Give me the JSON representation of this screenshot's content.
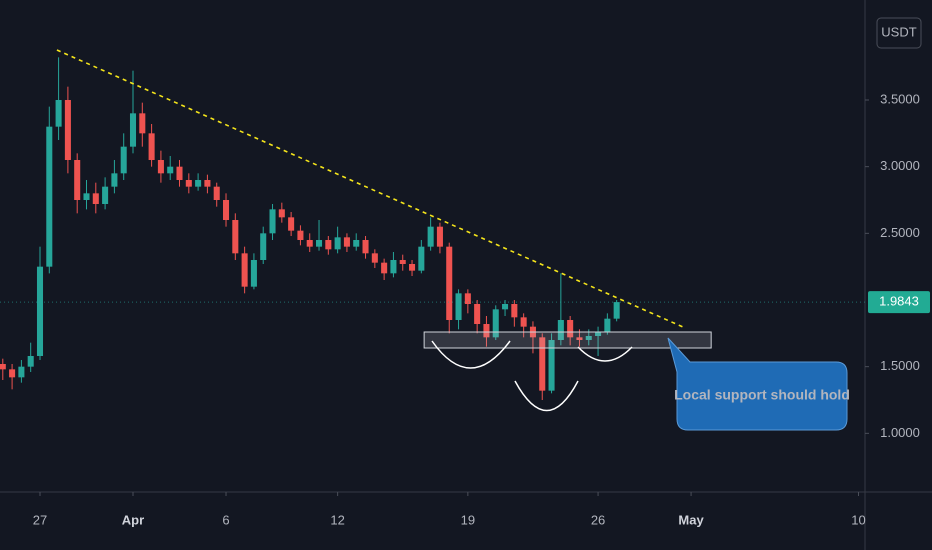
{
  "chart_data": {
    "type": "candlestick",
    "currency": "USDT",
    "up_color": "#26a69a",
    "down_color": "#ef5350",
    "grid": false,
    "xlim": [
      -2.15,
      44.35
    ],
    "xticks": [
      {
        "value": 0,
        "label": "27"
      },
      {
        "value": 5,
        "label": "Apr"
      },
      {
        "value": 10,
        "label": "6"
      },
      {
        "value": 16,
        "label": "12"
      },
      {
        "value": 23,
        "label": "19"
      },
      {
        "value": 30,
        "label": "26"
      },
      {
        "value": 35,
        "label": "May"
      },
      {
        "value": 44,
        "label": "10"
      }
    ],
    "ylim": [
      0.56,
      4.25
    ],
    "yticks": [
      {
        "value": 1,
        "label": "1.0000"
      },
      {
        "value": 1.5,
        "label": "1.5000"
      },
      {
        "value": 2.5,
        "label": "2.5000"
      },
      {
        "value": 3,
        "label": "3.0000"
      },
      {
        "value": 3.5,
        "label": "3.5000"
      }
    ],
    "x": [
      -2,
      -1.5,
      -1,
      -0.5,
      0,
      0.5,
      1,
      1.5,
      2,
      2.5,
      3,
      3.5,
      4,
      4.5,
      5,
      5.5,
      6,
      6.5,
      7,
      7.5,
      8,
      8.5,
      9,
      9.5,
      10,
      10.5,
      11,
      11.5,
      12,
      12.5,
      13,
      13.5,
      14,
      14.5,
      15,
      15.5,
      16,
      16.5,
      17,
      17.5,
      18,
      18.5,
      19,
      19.5,
      20,
      20.5,
      21,
      21.5,
      22,
      22.5,
      23,
      23.5,
      24,
      24.5,
      25,
      25.5,
      26,
      26.5,
      27,
      27.5,
      28,
      28.5,
      29,
      29.5,
      30,
      30.5,
      31
    ],
    "open": [
      1.52,
      1.48,
      1.42,
      1.5,
      1.58,
      2.25,
      3.3,
      3.5,
      3.05,
      2.75,
      2.8,
      2.72,
      2.85,
      2.95,
      3.15,
      3.4,
      3.25,
      3.05,
      2.95,
      3.0,
      2.9,
      2.85,
      2.9,
      2.85,
      2.75,
      2.6,
      2.35,
      2.1,
      2.3,
      2.5,
      2.68,
      2.62,
      2.52,
      2.45,
      2.4,
      2.45,
      2.38,
      2.47,
      2.4,
      2.45,
      2.35,
      2.28,
      2.2,
      2.3,
      2.27,
      2.22,
      2.4,
      2.55,
      2.4,
      1.85,
      2.05,
      1.97,
      1.82,
      1.72,
      1.93,
      1.97,
      1.87,
      1.8,
      1.72,
      1.32,
      1.7,
      1.85,
      1.72,
      1.7,
      1.73,
      1.76,
      1.86
    ],
    "high": [
      1.56,
      1.52,
      1.55,
      1.68,
      2.4,
      3.45,
      3.82,
      3.6,
      3.1,
      2.9,
      2.88,
      2.92,
      3.05,
      3.25,
      3.72,
      3.48,
      3.32,
      3.12,
      3.08,
      3.05,
      2.95,
      2.95,
      2.94,
      2.88,
      2.8,
      2.65,
      2.4,
      2.35,
      2.55,
      2.72,
      2.73,
      2.66,
      2.56,
      2.5,
      2.6,
      2.48,
      2.55,
      2.5,
      2.5,
      2.48,
      2.38,
      2.31,
      2.36,
      2.34,
      2.3,
      2.45,
      2.62,
      2.58,
      2.43,
      2.08,
      2.08,
      2.0,
      1.88,
      1.96,
      2.0,
      2.0,
      1.9,
      1.84,
      1.75,
      1.75,
      2.2,
      1.88,
      1.78,
      1.78,
      1.8,
      1.9,
      2.0
    ],
    "low": [
      1.4,
      1.33,
      1.38,
      1.46,
      1.55,
      2.2,
      3.2,
      2.95,
      2.65,
      2.68,
      2.65,
      2.68,
      2.8,
      2.9,
      3.1,
      3.15,
      3.0,
      2.88,
      2.9,
      2.85,
      2.8,
      2.82,
      2.8,
      2.7,
      2.55,
      2.3,
      2.05,
      2.08,
      2.27,
      2.45,
      2.58,
      2.48,
      2.41,
      2.36,
      2.37,
      2.34,
      2.35,
      2.36,
      2.37,
      2.31,
      2.24,
      2.15,
      2.17,
      2.22,
      2.18,
      2.2,
      2.37,
      2.35,
      1.75,
      1.78,
      1.9,
      1.75,
      1.65,
      1.7,
      1.88,
      1.8,
      1.72,
      1.6,
      1.25,
      1.3,
      1.66,
      1.66,
      1.65,
      1.66,
      1.58,
      1.74,
      1.84
    ],
    "close": [
      1.48,
      1.42,
      1.5,
      1.58,
      2.25,
      3.3,
      3.5,
      3.05,
      2.75,
      2.8,
      2.72,
      2.85,
      2.95,
      3.15,
      3.4,
      3.25,
      3.05,
      2.95,
      3.0,
      2.9,
      2.85,
      2.9,
      2.85,
      2.75,
      2.6,
      2.35,
      2.1,
      2.3,
      2.5,
      2.68,
      2.62,
      2.52,
      2.45,
      2.4,
      2.45,
      2.38,
      2.47,
      2.4,
      2.45,
      2.35,
      2.28,
      2.2,
      2.3,
      2.27,
      2.22,
      2.4,
      2.55,
      2.4,
      1.85,
      2.05,
      1.97,
      1.82,
      1.72,
      1.93,
      1.97,
      1.87,
      1.8,
      1.72,
      1.32,
      1.7,
      1.85,
      1.72,
      1.7,
      1.73,
      1.76,
      1.86,
      1.9843
    ],
    "last_price": 1.9843,
    "trendline": {
      "color": "#f5e51b",
      "x": [
        0.91,
        34.57
      ],
      "y": [
        3.875,
        1.797
      ]
    },
    "support_zone": {
      "x": [
        20.65,
        36.08
      ],
      "y": [
        1.64,
        1.76
      ]
    },
    "annotation": "Local support should hold"
  }
}
